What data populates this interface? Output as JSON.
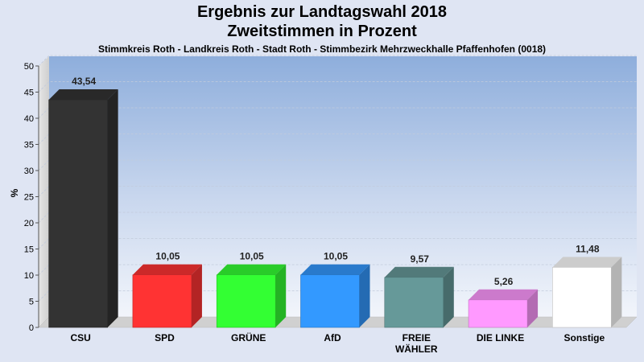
{
  "chart_data": {
    "type": "bar",
    "title": "Ergebnis zur Landtagswahl 2018",
    "subtitle_line": "Zweitstimmen in Prozent",
    "subtitle": "Stimmkreis Roth - Landkreis Roth - Stadt Roth - Stimmbezirk Mehrzweckhalle Pfaffenhofen (0018)",
    "ylabel": "%",
    "xlabel": "",
    "ylim": [
      0,
      50
    ],
    "yticks": [
      0,
      5,
      10,
      15,
      20,
      25,
      30,
      35,
      40,
      45,
      50
    ],
    "categories": [
      "CSU",
      "SPD",
      "GRÜNE",
      "AfD",
      "FREIE WÄHLER",
      "DIE LINKE",
      "Sonstige"
    ],
    "category_lines": [
      [
        "CSU"
      ],
      [
        "SPD"
      ],
      [
        "GRÜNE"
      ],
      [
        "AfD"
      ],
      [
        "FREIE",
        "WÄHLER"
      ],
      [
        "DIE LINKE"
      ],
      [
        "Sonstige"
      ]
    ],
    "values": [
      43.54,
      10.05,
      10.05,
      10.05,
      9.57,
      5.26,
      11.48
    ],
    "value_labels": [
      "43,54",
      "10,05",
      "10,05",
      "10,05",
      "9,57",
      "5,26",
      "11,48"
    ],
    "colors": [
      "#333333",
      "#ff3333",
      "#33ff33",
      "#3399ff",
      "#669999",
      "#ff99ff",
      "#ffffff"
    ],
    "grid": true,
    "legend": "none"
  }
}
